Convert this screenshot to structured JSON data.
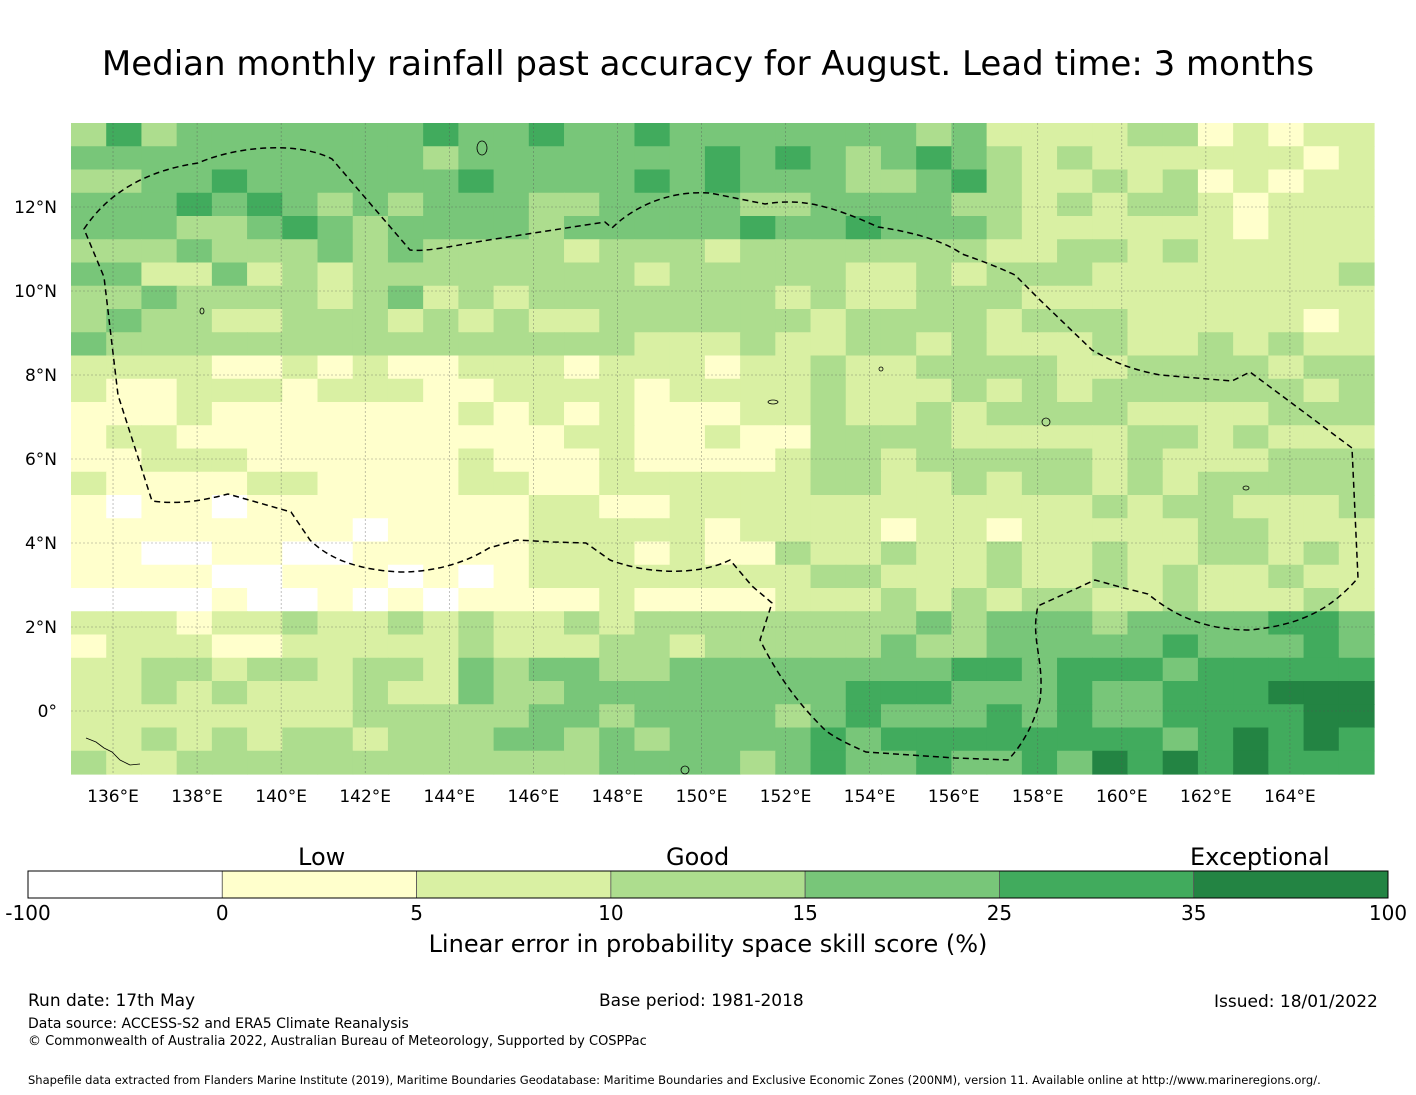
{
  "title": "Median monthly rainfall past accuracy for August. Lead time: 3 months",
  "map": {
    "lon_labels": [
      "136°E",
      "138°E",
      "140°E",
      "142°E",
      "144°E",
      "146°E",
      "148°E",
      "150°E",
      "152°E",
      "154°E",
      "156°E",
      "158°E",
      "160°E",
      "162°E",
      "164°E"
    ],
    "lat_labels": [
      "12°N",
      "10°N",
      "8°N",
      "6°N",
      "4°N",
      "2°N",
      "0°"
    ],
    "lon_range": [
      135.0,
      166.0
    ],
    "lat_range": [
      -1.5,
      14.0
    ],
    "grid_lines": true,
    "boundary_style": "dashed",
    "region": "Federated States of Micronesia EEZ"
  },
  "colorbar": {
    "category_labels": {
      "low": "Low",
      "good": "Good",
      "exceptional": "Exceptional"
    },
    "ticks": [
      "-100",
      "0",
      "5",
      "10",
      "15",
      "25",
      "35",
      "100"
    ],
    "colors": [
      "#ffffff",
      "#ffffcc",
      "#d9f0a3",
      "#addd8e",
      "#78c679",
      "#41ab5d",
      "#238443"
    ],
    "title": "Linear error in probability space skill score (%)"
  },
  "footer": {
    "run_date": "Run date: 17th May",
    "base_period": "Base period: 1981-2018",
    "issued": "Issued: 18/01/2022",
    "data_source": "Data source: ACCESS-S2 and ERA5 Climate Reanalysis",
    "copyright": "© Commonwealth of Australia 2022, Australian Bureau of Meteorology, Supported by COSPPac",
    "shapefile_note": "Shapefile data extracted from Flanders Marine Institute (2019), Maritime Boundaries Geodatabase: Maritime Boundaries and Exclusive Economic Zones (200NM), version 11. Available online at http://www.marineregions.org/."
  }
}
